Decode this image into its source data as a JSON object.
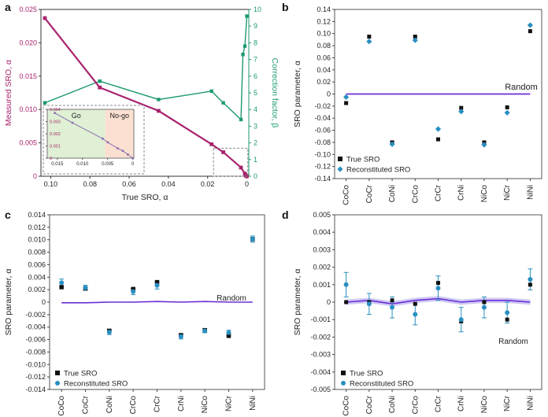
{
  "colors": {
    "measured": "#a8236e",
    "correction": "#1e9a6e",
    "true_marker": "#111111",
    "recon_marker": "#2a8fc1",
    "random_line": "#6a2ed6",
    "go_fill": "#dff0d4",
    "nogo_fill": "#fbe0d2"
  },
  "panel_labels": [
    "a",
    "b",
    "c",
    "d"
  ],
  "chart_data": [
    {
      "panel": "a",
      "type": "line",
      "xlabel": "True SRO, α",
      "ylabel": "Measured SRO, α",
      "y2label": "Correction factor, β",
      "xlim": [
        0.105,
        -0.001
      ],
      "ylim": [
        0,
        0.025
      ],
      "y2lim": [
        0,
        10
      ],
      "xticks": [
        0.1,
        0.08,
        0.06,
        0.04,
        0.02,
        0
      ],
      "xtick_labels": [
        "0.10",
        "0.08",
        "0.06",
        "0.04",
        "0.02",
        "0"
      ],
      "yticks": [
        0,
        0.005,
        0.01,
        0.015,
        0.02,
        0.025
      ],
      "ytick_labels": [
        "0",
        "0.005",
        "0.010",
        "0.015",
        "0.020",
        "0.025"
      ],
      "y2ticks": [
        0,
        1,
        2,
        3,
        4,
        5,
        6,
        7,
        8,
        9,
        10
      ],
      "y2tick_labels": [
        "0",
        "1",
        "2",
        "3",
        "4",
        "5",
        "6",
        "7",
        "8",
        "9",
        "10"
      ],
      "series": [
        {
          "name": "Measured SRO",
          "axis": "left",
          "x": [
            0.103,
            0.075,
            0.045,
            0.018,
            0.012,
            0.003,
            0.001,
            0.0005,
            0.0
          ],
          "y": [
            0.0237,
            0.0133,
            0.0098,
            0.0048,
            0.0036,
            0.0013,
            0.0004,
            0.0001,
            0.0
          ]
        },
        {
          "name": "Correction factor",
          "axis": "right",
          "x": [
            0.103,
            0.075,
            0.045,
            0.018,
            0.012,
            0.003,
            0.002,
            0.001,
            0.0
          ],
          "y": [
            4.4,
            5.7,
            4.6,
            5.1,
            4.4,
            3.4,
            7.3,
            7.8,
            9.6
          ]
        }
      ],
      "inset": {
        "xlim": [
          0.017,
          -0.0002
        ],
        "ylim": [
          0,
          0.004
        ],
        "xticks": [
          0.015,
          0.01,
          0.005,
          0
        ],
        "xtick_labels": [
          "0.015",
          "0.010",
          "0.005",
          "0"
        ],
        "yticks": [
          0,
          0.001,
          0.002,
          0.003,
          0.004
        ],
        "ytick_labels": [
          "0",
          "0.001",
          "0.002",
          "0.003",
          "0.004"
        ],
        "go_label": "Go",
        "nogo_label": "No-go",
        "boundary": 0.0055,
        "x": [
          0.0155,
          0.012,
          0.006,
          0.005,
          0.003,
          0.002,
          0.001,
          0.0
        ],
        "y": [
          0.0037,
          0.0029,
          0.0016,
          0.0013,
          0.0008,
          0.0006,
          0.0003,
          0.0
        ]
      }
    },
    {
      "panel": "b",
      "type": "scatter",
      "ylabel": "SRO parameter, α",
      "categories": [
        "CoCo",
        "CoCr",
        "CoNi",
        "CrCo",
        "CrCr",
        "CrNi",
        "NiCo",
        "NiCr",
        "NiNi"
      ],
      "ylim": [
        -0.14,
        0.14
      ],
      "yticks": [
        -0.14,
        -0.12,
        -0.1,
        -0.08,
        -0.06,
        -0.04,
        -0.02,
        0,
        0.02,
        0.04,
        0.06,
        0.08,
        0.1,
        0.12,
        0.14
      ],
      "ytick_labels": [
        "-0.14",
        "-0.12",
        "-0.10",
        "-0.08",
        "-0.06",
        "-0.04",
        "-0.02",
        "0",
        "0.02",
        "0.04",
        "0.06",
        "0.08",
        "0.10",
        "0.12",
        "0.14"
      ],
      "series": [
        {
          "name": "True SRO",
          "values": [
            -0.015,
            0.095,
            -0.08,
            0.095,
            -0.075,
            -0.023,
            -0.08,
            -0.022,
            0.104
          ]
        },
        {
          "name": "Reconstituted SRO",
          "values": [
            -0.005,
            0.087,
            -0.083,
            0.089,
            -0.058,
            -0.029,
            -0.084,
            -0.031,
            0.114
          ]
        }
      ],
      "random_values": [
        0,
        0,
        0,
        0,
        0,
        0,
        0,
        0,
        0
      ],
      "random_label": "Random",
      "legend": [
        "True SRO",
        "Reconstituted SRO"
      ]
    },
    {
      "panel": "c",
      "type": "scatter",
      "ylabel": "SRO parameter, α",
      "categories": [
        "CoCo",
        "CoCr",
        "CoNi",
        "CrCo",
        "CrCr",
        "CrNi",
        "NiCo",
        "NiCr",
        "NiNi"
      ],
      "ylim": [
        -0.014,
        0.014
      ],
      "yticks": [
        -0.014,
        -0.012,
        -0.01,
        -0.008,
        -0.006,
        -0.004,
        -0.002,
        0,
        0.002,
        0.004,
        0.006,
        0.008,
        0.01,
        0.012,
        0.014
      ],
      "ytick_labels": [
        "-0.014",
        "-0.012",
        "-0.010",
        "-0.008",
        "-0.006",
        "-0.004",
        "-0.002",
        "0",
        "0.002",
        "0.004",
        "0.006",
        "0.008",
        "0.010",
        "0.012",
        "0.014"
      ],
      "series": [
        {
          "name": "True SRO",
          "values": [
            0.0024,
            0.0022,
            -0.0046,
            0.0021,
            0.0032,
            -0.0053,
            -0.0045,
            -0.0054,
            0.0101
          ]
        },
        {
          "name": "Reconstituted SRO",
          "values": [
            0.0031,
            0.0023,
            -0.0048,
            0.0017,
            0.0027,
            -0.0055,
            -0.0046,
            -0.0049,
            0.0101
          ],
          "errors": [
            0.0006,
            0.0004,
            0.0004,
            0.0005,
            0.0006,
            0.0004,
            0.0003,
            0.0004,
            0.0005
          ]
        }
      ],
      "random_values": [
        -0.0001,
        -0.0001,
        0.0,
        0.0,
        0.0001,
        0.0,
        0.0001,
        0.0,
        0.0
      ],
      "random_label": "Random",
      "legend": [
        "True SRO",
        "Reconstituted SRO"
      ]
    },
    {
      "panel": "d",
      "type": "scatter",
      "ylabel": "SRO parameter, α",
      "categories": [
        "CoCo",
        "CoCr",
        "CoNi",
        "CrCo",
        "CrCr",
        "CrNi",
        "NiCo",
        "NiCr",
        "NiNi"
      ],
      "ylim": [
        -0.005,
        0.005
      ],
      "yticks": [
        -0.005,
        -0.004,
        -0.003,
        -0.002,
        -0.001,
        0,
        0.001,
        0.002,
        0.003,
        0.004,
        0.005
      ],
      "ytick_labels": [
        "-0.005",
        "-0.004",
        "-0.003",
        "-0.002",
        "-0.001",
        "0",
        "0.001",
        "0.002",
        "0.003",
        "0.004",
        "0.005"
      ],
      "series": [
        {
          "name": "True SRO",
          "values": [
            0.0,
            0.0,
            0.0001,
            -0.0001,
            0.0011,
            -0.0011,
            0.0,
            -0.001,
            0.001
          ]
        },
        {
          "name": "Reconstituted SRO",
          "values": [
            0.001,
            -0.0001,
            -0.0003,
            -0.0007,
            0.0008,
            -0.001,
            -0.0003,
            -0.0006,
            0.0013
          ],
          "errors": [
            0.0007,
            0.0006,
            0.0006,
            0.0006,
            0.0007,
            0.0007,
            0.0006,
            0.0006,
            0.0006
          ]
        }
      ],
      "random_values": [
        0.0,
        0.0001,
        -0.0001,
        0.0001,
        0.0002,
        0.0,
        0.0001,
        0.0001,
        0.0
      ],
      "random_band": 0.00015,
      "random_label": "Random",
      "legend": [
        "True SRO",
        "Reconstituted SRO"
      ]
    }
  ]
}
